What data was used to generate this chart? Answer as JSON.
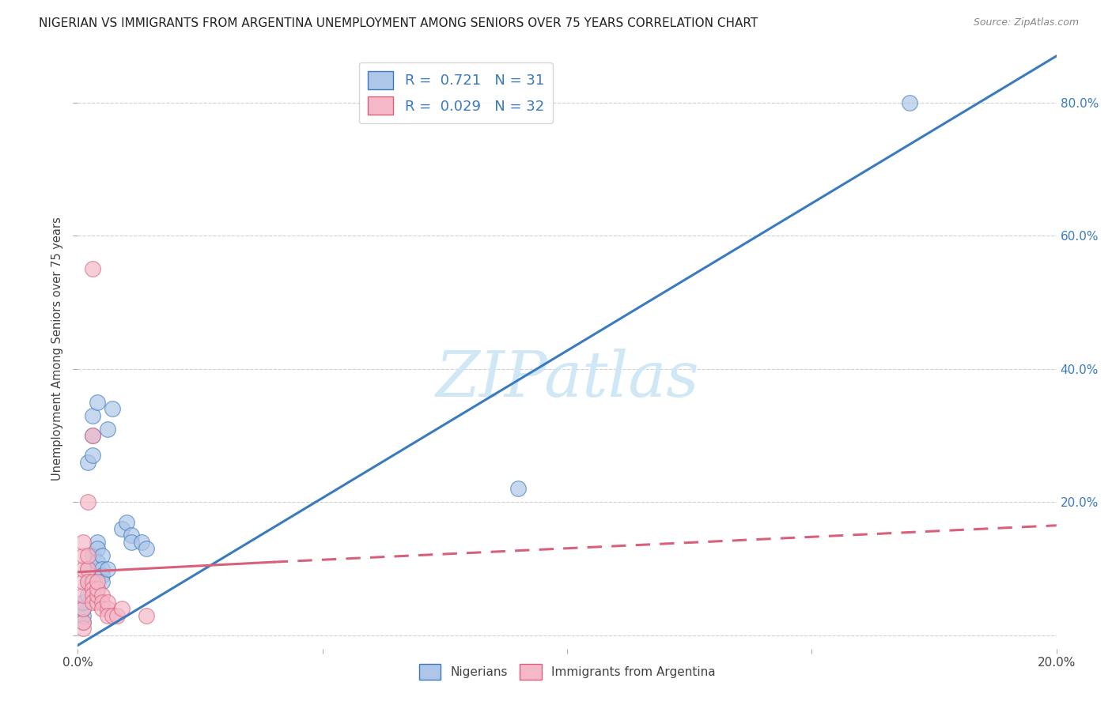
{
  "title": "NIGERIAN VS IMMIGRANTS FROM ARGENTINA UNEMPLOYMENT AMONG SENIORS OVER 75 YEARS CORRELATION CHART",
  "source": "Source: ZipAtlas.com",
  "xlabel_ticks": [
    "0.0%",
    "",
    "",
    "",
    "20.0%"
  ],
  "xlabel_vals": [
    0.0,
    0.05,
    0.1,
    0.15,
    0.2
  ],
  "ylabel": "Unemployment Among Seniors over 75 years",
  "ylabel_ticks": [
    "",
    "20.0%",
    "40.0%",
    "60.0%",
    "80.0%"
  ],
  "ylabel_vals": [
    0.0,
    0.2,
    0.4,
    0.6,
    0.8
  ],
  "blue_R": 0.721,
  "blue_N": 31,
  "pink_R": 0.029,
  "pink_N": 32,
  "blue_color": "#aec6e8",
  "blue_line_color": "#3a7abf",
  "pink_color": "#f5b8c8",
  "pink_line_color": "#d9607a",
  "blue_scatter": [
    [
      0.001,
      0.02
    ],
    [
      0.001,
      0.03
    ],
    [
      0.001,
      0.04
    ],
    [
      0.001,
      0.05
    ],
    [
      0.002,
      0.06
    ],
    [
      0.002,
      0.08
    ],
    [
      0.002,
      0.1
    ],
    [
      0.002,
      0.26
    ],
    [
      0.003,
      0.27
    ],
    [
      0.003,
      0.3
    ],
    [
      0.003,
      0.33
    ],
    [
      0.003,
      0.12
    ],
    [
      0.004,
      0.35
    ],
    [
      0.004,
      0.14
    ],
    [
      0.004,
      0.13
    ],
    [
      0.004,
      0.11
    ],
    [
      0.005,
      0.12
    ],
    [
      0.005,
      0.1
    ],
    [
      0.005,
      0.09
    ],
    [
      0.005,
      0.08
    ],
    [
      0.006,
      0.31
    ],
    [
      0.006,
      0.1
    ],
    [
      0.007,
      0.34
    ],
    [
      0.009,
      0.16
    ],
    [
      0.01,
      0.17
    ],
    [
      0.011,
      0.15
    ],
    [
      0.011,
      0.14
    ],
    [
      0.013,
      0.14
    ],
    [
      0.014,
      0.13
    ],
    [
      0.09,
      0.22
    ],
    [
      0.17,
      0.8
    ]
  ],
  "pink_scatter": [
    [
      0.001,
      0.01
    ],
    [
      0.001,
      0.02
    ],
    [
      0.001,
      0.04
    ],
    [
      0.001,
      0.06
    ],
    [
      0.001,
      0.08
    ],
    [
      0.001,
      0.1
    ],
    [
      0.001,
      0.12
    ],
    [
      0.001,
      0.14
    ],
    [
      0.002,
      0.1
    ],
    [
      0.002,
      0.12
    ],
    [
      0.002,
      0.2
    ],
    [
      0.002,
      0.08
    ],
    [
      0.003,
      0.55
    ],
    [
      0.003,
      0.3
    ],
    [
      0.003,
      0.08
    ],
    [
      0.003,
      0.07
    ],
    [
      0.003,
      0.06
    ],
    [
      0.003,
      0.05
    ],
    [
      0.004,
      0.05
    ],
    [
      0.004,
      0.06
    ],
    [
      0.004,
      0.07
    ],
    [
      0.004,
      0.08
    ],
    [
      0.005,
      0.06
    ],
    [
      0.005,
      0.05
    ],
    [
      0.005,
      0.04
    ],
    [
      0.006,
      0.04
    ],
    [
      0.006,
      0.05
    ],
    [
      0.006,
      0.03
    ],
    [
      0.007,
      0.03
    ],
    [
      0.008,
      0.03
    ],
    [
      0.009,
      0.04
    ],
    [
      0.014,
      0.03
    ]
  ],
  "blue_trendline": [
    [
      0.0,
      -0.015
    ],
    [
      0.2,
      0.87
    ]
  ],
  "pink_trendline_solid": [
    [
      0.0,
      0.095
    ],
    [
      0.04,
      0.11
    ]
  ],
  "pink_trendline_dashed": [
    [
      0.04,
      0.11
    ],
    [
      0.2,
      0.165
    ]
  ],
  "watermark": "ZIPatlas",
  "watermark_color": "#d0e8f5",
  "background_color": "#ffffff",
  "grid_color": "#cccccc",
  "xlim": [
    0.0,
    0.2
  ],
  "ylim": [
    -0.02,
    0.88
  ]
}
